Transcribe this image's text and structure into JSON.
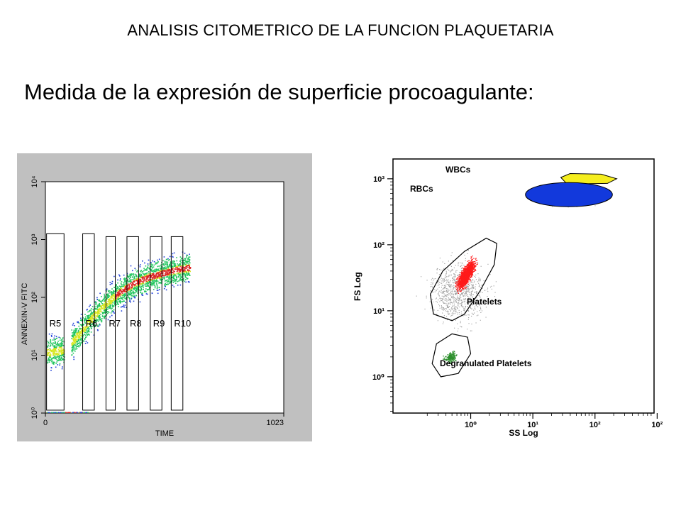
{
  "page": {
    "title": "ANALISIS CITOMETRICO DE LA FUNCION PLAQUETARIA",
    "subtitle": "Medida de la expresión de superficie procoagulante:"
  },
  "colors": {
    "left_panel_bg": "#c0c0c0",
    "plot_bg": "#ffffff",
    "density_blue": "#1f3fd8",
    "density_green": "#22c55e",
    "density_yellow": "#d7e620",
    "density_red": "#dc2626",
    "wbc_yellow": "#f5ee1e",
    "rbc_blue": "#1239dc",
    "platelet_red": "#ff1a1a",
    "degranulated_green": "#2c8f2c",
    "debris_gray": "#9a9a9a"
  },
  "chart_data": [
    {
      "type": "scatter",
      "title": "",
      "xlabel": "TIME",
      "ylabel": "ANNEXIN-V FITC",
      "x_ticks": [
        "0",
        "1023"
      ],
      "y_ticks": [
        "10⁰",
        "10¹",
        "10²",
        "10³",
        "10⁴"
      ],
      "xlim": [
        0,
        1023
      ],
      "ylim_decades": [
        0,
        4
      ],
      "y_scale": "log",
      "regions": [
        {
          "name": "R5",
          "x_from": 5,
          "x_to": 80,
          "y_from_decade": 0.05,
          "y_to_decade": 3.1
        },
        {
          "name": "R6",
          "x_from": 160,
          "x_to": 210,
          "y_from_decade": 0.05,
          "y_to_decade": 3.1
        },
        {
          "name": "R7",
          "x_from": 260,
          "x_to": 300,
          "y_from_decade": 0.05,
          "y_to_decade": 3.05
        },
        {
          "name": "R8",
          "x_from": 350,
          "x_to": 400,
          "y_from_decade": 0.05,
          "y_to_decade": 3.05
        },
        {
          "name": "R9",
          "x_from": 450,
          "x_to": 500,
          "y_from_decade": 0.05,
          "y_to_decade": 3.05
        },
        {
          "name": "R10",
          "x_from": 540,
          "x_to": 590,
          "y_from_decade": 0.05,
          "y_to_decade": 3.05
        }
      ],
      "trend": {
        "x": [
          10,
          80,
          140,
          200,
          260,
          320,
          380,
          440,
          500,
          560,
          620
        ],
        "y_decade": [
          1.05,
          1.1,
          1.35,
          1.65,
          1.9,
          2.1,
          2.25,
          2.35,
          2.42,
          2.48,
          2.52
        ]
      },
      "grid": false,
      "legend": "none"
    },
    {
      "type": "scatter",
      "title": "",
      "xlabel": "SS Log",
      "ylabel": "FS Log",
      "x_ticks": [
        "10⁰",
        "10¹",
        "10²",
        "10²"
      ],
      "y_ticks": [
        "10⁰",
        "10¹",
        "10²",
        "10³"
      ],
      "x_scale": "log",
      "y_scale": "log",
      "populations": [
        {
          "name": "WBCs",
          "ss_decade": [
            1.45,
            2.3
          ],
          "fs_decade": [
            2.9,
            3.05
          ],
          "color": "#f5ee1e"
        },
        {
          "name": "RBCs",
          "ss_decade": [
            0.95,
            2.2
          ],
          "fs_decade": [
            2.65,
            2.85
          ],
          "color": "#1239dc"
        },
        {
          "name": "Platelets",
          "ss_decade": [
            -0.55,
            0.4
          ],
          "fs_decade": [
            1.0,
            2.05
          ],
          "color": "#ff1a1a"
        },
        {
          "name": "Degranulated Platelets",
          "ss_decade": [
            -0.6,
            0.0
          ],
          "fs_decade": [
            0.05,
            0.5
          ],
          "color": "#2c8f2c"
        }
      ],
      "grid": false,
      "legend": "none"
    }
  ]
}
